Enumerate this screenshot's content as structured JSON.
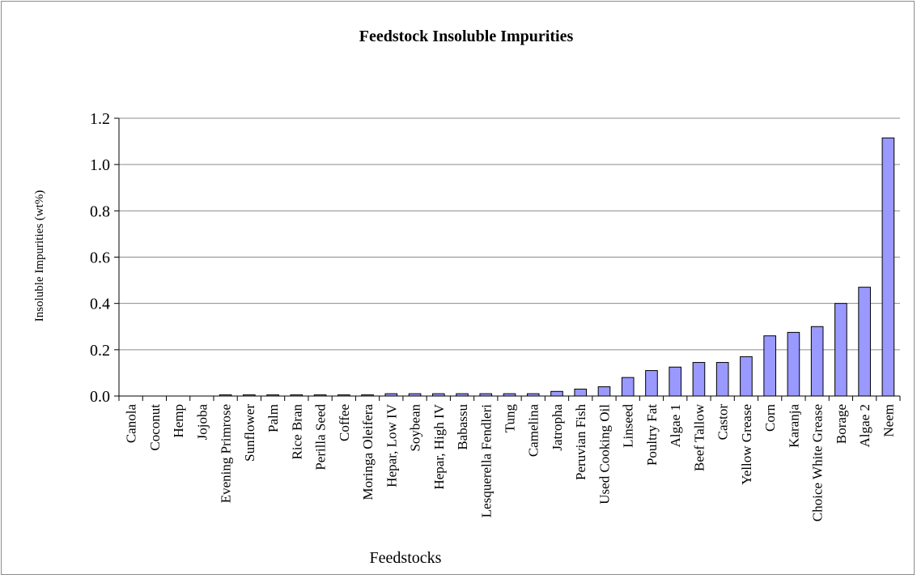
{
  "chart_data": {
    "type": "bar",
    "title": "Feedstock Insoluble Impurities",
    "xlabel": "Feedstocks",
    "ylabel": "Insoluble Impurities (wt%)",
    "ylim": [
      0,
      1.2
    ],
    "yticks": [
      "0.0",
      "0.2",
      "0.4",
      "0.6",
      "0.8",
      "1.0",
      "1.2"
    ],
    "grid": true,
    "legend": "none",
    "bar_color": "#9999ff",
    "categories": [
      "Canola",
      "Coconut",
      "Hemp",
      "Jojoba",
      "Evening Primrose",
      "Sunflower",
      "Palm",
      "Rice Bran",
      "Perilla Seed",
      "Coffee",
      "Moringa Oleifera",
      "Hepar, Low IV",
      "Soybean",
      "Hepar, High IV",
      "Babassu",
      "Lesquerella Fendleri",
      "Tung",
      "Camelina",
      "Jatropha",
      "Peruvian Fish",
      "Used Cooking Oil",
      "Linseed",
      "Poultry Fat",
      "Algae 1",
      "Beef Tallow",
      "Castor",
      "Yellow Grease",
      "Corn",
      "Karanja",
      "Choice White Grease",
      "Borage",
      "Algae 2",
      "Neem"
    ],
    "values": [
      0,
      0,
      0,
      0,
      0.005,
      0.005,
      0.005,
      0.005,
      0.005,
      0.005,
      0.005,
      0.01,
      0.01,
      0.01,
      0.01,
      0.01,
      0.01,
      0.01,
      0.02,
      0.03,
      0.04,
      0.08,
      0.11,
      0.125,
      0.145,
      0.145,
      0.17,
      0.26,
      0.275,
      0.3,
      0.4,
      0.47,
      1.115
    ]
  }
}
